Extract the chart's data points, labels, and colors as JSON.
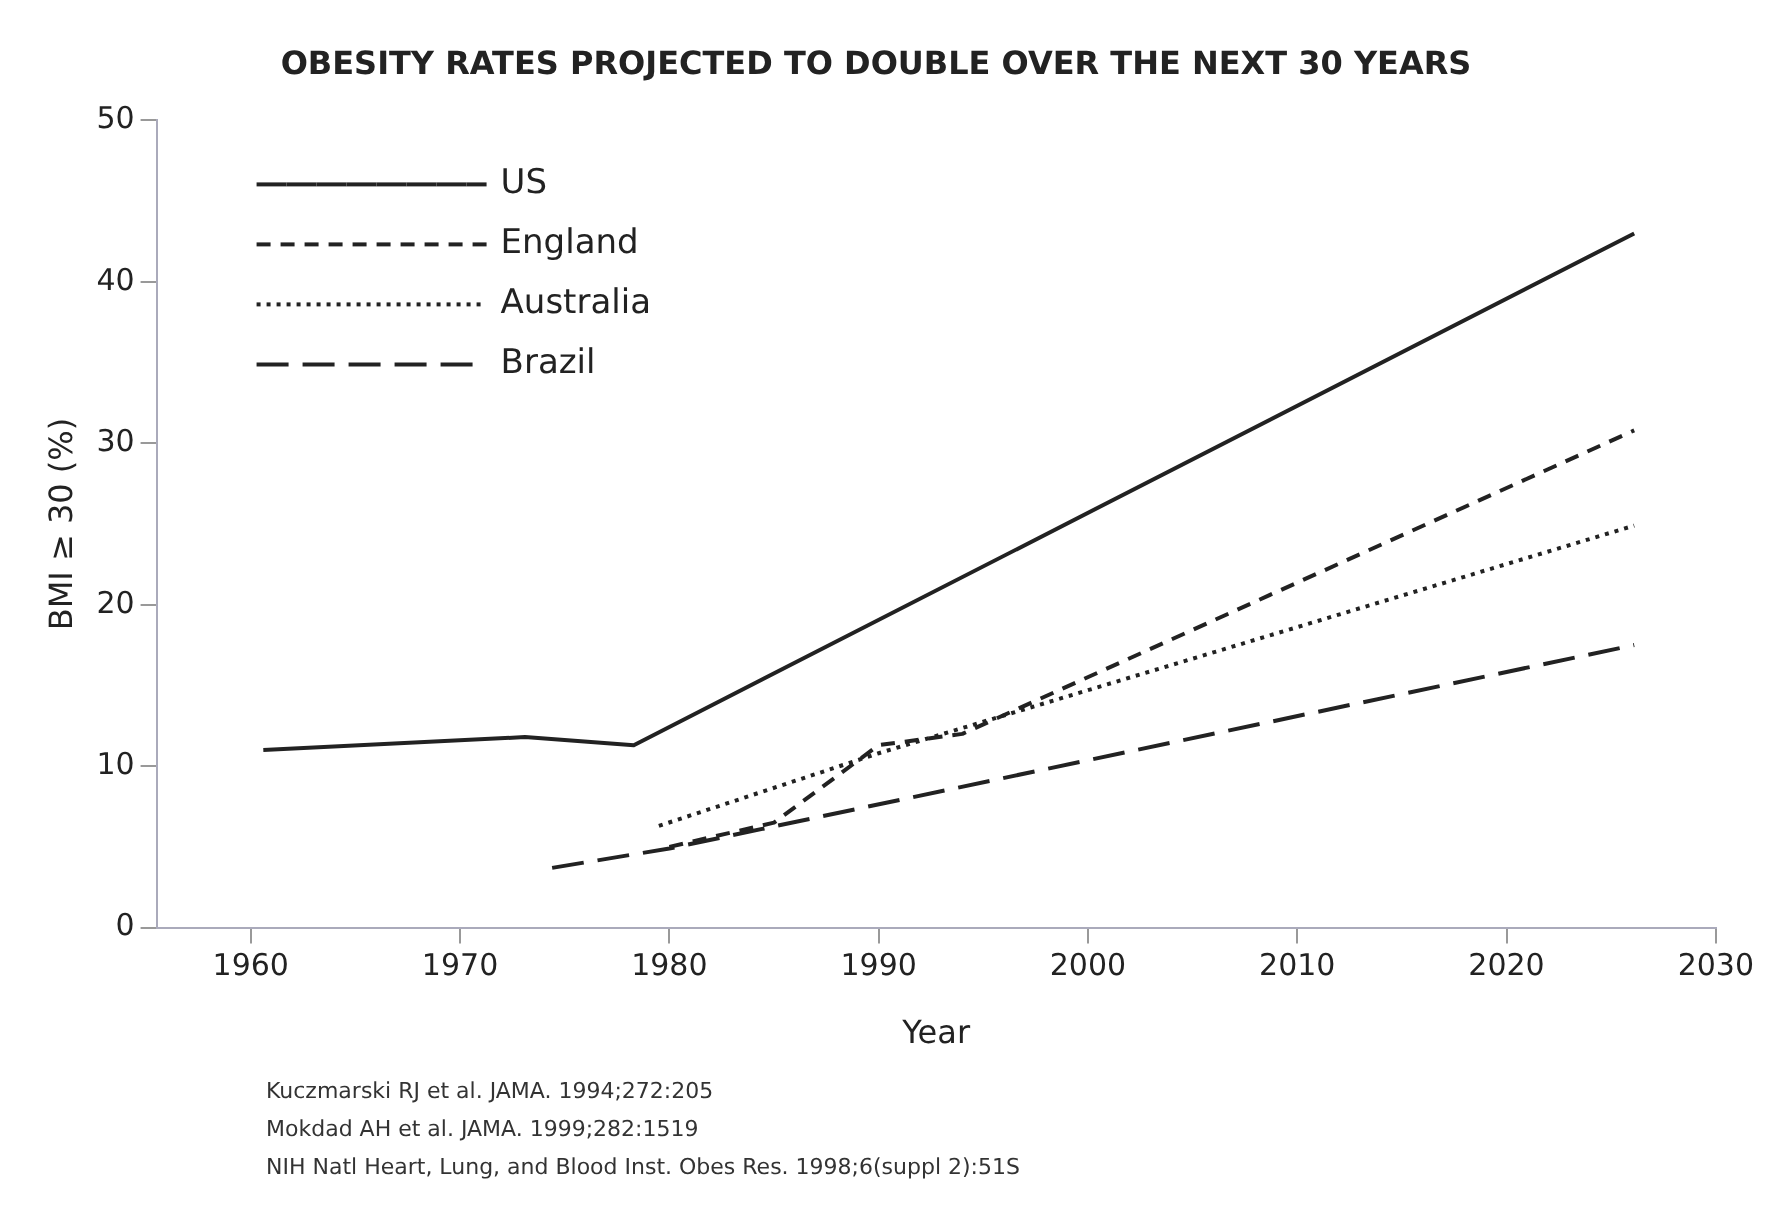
{
  "chart_data": {
    "type": "line",
    "title": "OBESITY RATES PROJECTED TO DOUBLE OVER THE NEXT 30 YEARS",
    "xlabel": "Year",
    "ylabel": "BMI ≥ 30 (%)",
    "xlim": [
      1955.5,
      2030
    ],
    "xticks": [
      1960,
      1970,
      1980,
      1990,
      2000,
      2010,
      2020,
      2030
    ],
    "ylim": [
      0,
      50
    ],
    "yticks": [
      0,
      10,
      20,
      30,
      40,
      50
    ],
    "grid": false,
    "legend": "top left",
    "marker": "none",
    "series": [
      {
        "name": "US",
        "color": "#222222",
        "line_style": "solid",
        "x": [
          1960.6,
          1973.1,
          1978.3,
          2026.1
        ],
        "values": [
          11.0,
          11.8,
          11.3,
          43.0
        ]
      },
      {
        "name": "England",
        "color": "#222222",
        "line_style": "dashed",
        "x": [
          1980,
          1985,
          1990,
          1994,
          2026.1
        ],
        "values": [
          5.0,
          6.5,
          11.3,
          12.0,
          30.8
        ]
      },
      {
        "name": "Australia",
        "color": "#222222",
        "line_style": "dotted",
        "x": [
          1979.5,
          1990,
          2026.1
        ],
        "values": [
          6.3,
          10.8,
          24.9
        ]
      },
      {
        "name": "Brazil",
        "color": "#222222",
        "line_style": "longdash",
        "x": [
          1974.4,
          1980,
          2026.1
        ],
        "values": [
          3.7,
          4.9,
          17.5
        ]
      }
    ],
    "annotations": [
      "Kuczmarski RJ et al. JAMA. 1994;272:205",
      "Mokdad AH et al. JAMA. 1999;282:1519",
      "NIH Natl Heart, Lung, and Blood Inst. Obes Res. 1998;6(suppl 2):51S"
    ]
  }
}
